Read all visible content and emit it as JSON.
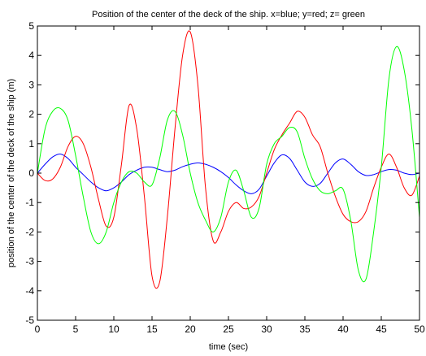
{
  "chart_data": {
    "type": "line",
    "title": "Position of the center of the deck of the ship.  x=blue; y=red; z= green",
    "xlabel": "time (sec)",
    "ylabel": "position of the center of the deck of the ship (m)",
    "xlim": [
      0,
      50
    ],
    "ylim": [
      -5,
      5
    ],
    "xticks": [
      "0",
      "5",
      "10",
      "15",
      "20",
      "25",
      "30",
      "35",
      "40",
      "45",
      "50"
    ],
    "yticks": [
      "-5",
      "-4",
      "-3",
      "-2",
      "-1",
      "0",
      "1",
      "2",
      "3",
      "4",
      "5"
    ],
    "grid": false,
    "legend": "none",
    "series": [
      {
        "color": "#0000ff",
        "x": [
          0,
          1,
          2,
          3,
          4,
          5,
          6,
          7,
          8,
          9,
          10,
          11,
          12,
          13,
          14,
          15,
          16,
          17,
          18,
          19,
          20,
          21,
          22,
          23,
          24,
          25,
          26,
          27,
          28,
          29,
          30,
          31,
          32,
          33,
          34,
          35,
          36,
          37,
          38,
          39,
          40,
          41,
          42,
          43,
          44,
          45,
          46,
          47,
          48,
          49,
          50
        ],
        "y": [
          0.0,
          0.3,
          0.55,
          0.65,
          0.5,
          0.2,
          -0.05,
          -0.3,
          -0.5,
          -0.6,
          -0.5,
          -0.3,
          -0.05,
          0.1,
          0.2,
          0.2,
          0.12,
          0.05,
          0.1,
          0.22,
          0.3,
          0.35,
          0.3,
          0.2,
          0.05,
          -0.15,
          -0.4,
          -0.6,
          -0.7,
          -0.55,
          -0.1,
          0.35,
          0.62,
          0.5,
          0.1,
          -0.3,
          -0.45,
          -0.35,
          0.0,
          0.35,
          0.48,
          0.3,
          0.05,
          -0.08,
          -0.05,
          0.05,
          0.12,
          0.1,
          0.0,
          -0.05,
          0.0
        ]
      },
      {
        "color": "#ff0000",
        "x": [
          0,
          1,
          2,
          3,
          4,
          5,
          6,
          7,
          8,
          9,
          10,
          11,
          12,
          13,
          14,
          15,
          16,
          17,
          18,
          19,
          20,
          21,
          22,
          23,
          24,
          25,
          26,
          27,
          28,
          29,
          30,
          31,
          32,
          33,
          34,
          35,
          36,
          37,
          38,
          39,
          40,
          41,
          42,
          43,
          44,
          45,
          46,
          47,
          48,
          49,
          50
        ],
        "y": [
          0.0,
          -0.25,
          -0.2,
          0.2,
          0.9,
          1.25,
          1.0,
          0.2,
          -0.9,
          -1.8,
          -1.5,
          0.3,
          2.3,
          1.5,
          -0.8,
          -3.5,
          -3.7,
          -1.5,
          1.5,
          4.0,
          4.8,
          3.0,
          -0.5,
          -2.3,
          -2.0,
          -1.3,
          -1.0,
          -1.2,
          -1.15,
          -0.8,
          0.0,
          0.8,
          1.3,
          1.7,
          2.1,
          1.9,
          1.3,
          0.9,
          0.0,
          -0.8,
          -1.4,
          -1.65,
          -1.65,
          -1.3,
          -0.5,
          0.2,
          0.65,
          0.2,
          -0.5,
          -0.75,
          -0.1
        ]
      },
      {
        "color": "#00ff00",
        "x": [
          0,
          1,
          2,
          3,
          4,
          5,
          6,
          7,
          8,
          9,
          10,
          11,
          12,
          13,
          14,
          15,
          16,
          17,
          18,
          19,
          20,
          21,
          22,
          23,
          24,
          25,
          26,
          27,
          28,
          29,
          30,
          31,
          32,
          33,
          34,
          35,
          36,
          37,
          38,
          39,
          40,
          41,
          42,
          43,
          44,
          45,
          46,
          47,
          48,
          49,
          50
        ],
        "y": [
          0.0,
          1.5,
          2.1,
          2.2,
          1.8,
          0.6,
          -0.8,
          -2.0,
          -2.4,
          -2.0,
          -1.0,
          -0.3,
          0.05,
          0.0,
          -0.3,
          -0.4,
          0.5,
          1.8,
          2.1,
          1.3,
          0.0,
          -1.0,
          -1.6,
          -2.0,
          -1.5,
          -0.3,
          0.1,
          -0.6,
          -1.5,
          -1.2,
          0.3,
          1.0,
          1.25,
          1.55,
          1.4,
          0.5,
          -0.2,
          -0.6,
          -0.7,
          -0.6,
          -0.55,
          -1.6,
          -3.3,
          -3.6,
          -2.0,
          0.2,
          3.2,
          4.3,
          3.5,
          1.5,
          -1.5
        ]
      }
    ]
  }
}
